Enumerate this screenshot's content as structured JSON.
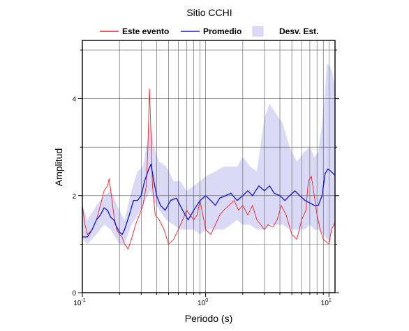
{
  "chart_data": {
    "type": "line",
    "title": "Sitio CCHI",
    "xlabel": "Periodo (s)",
    "ylabel": "Amplitud",
    "xscale": "log",
    "xlim": [
      0.1,
      11.2
    ],
    "ylim": [
      0,
      5.2
    ],
    "grid": true,
    "legend_position": "top",
    "x_ticks": [
      {
        "value": 0.1,
        "base": "10",
        "exp": "-1"
      },
      {
        "value": 1,
        "base": "10",
        "exp": "0"
      },
      {
        "value": 10,
        "base": "10",
        "exp": "1"
      }
    ],
    "y_ticks": [
      {
        "value": 0,
        "label": "0"
      },
      {
        "value": 2,
        "label": "2"
      },
      {
        "value": 4,
        "label": "4"
      }
    ],
    "band": {
      "name": "Desv. Est.",
      "color": "#dadaf6",
      "x": [
        0.1,
        0.11,
        0.13,
        0.15,
        0.17,
        0.2,
        0.22,
        0.25,
        0.28,
        0.31,
        0.34,
        0.355,
        0.38,
        0.42,
        0.48,
        0.55,
        0.62,
        0.7,
        0.8,
        0.9,
        1.0,
        1.2,
        1.4,
        1.6,
        1.8,
        2.0,
        2.3,
        2.6,
        3.0,
        3.3,
        3.7,
        4.2,
        4.8,
        5.5,
        6.3,
        7.0,
        7.6,
        8.2,
        9.0,
        9.6,
        10.0,
        10.5,
        11.2
      ],
      "upper": [
        1.8,
        1.5,
        1.8,
        2.0,
        2.1,
        1.7,
        1.5,
        2.1,
        2.5,
        2.6,
        3.2,
        3.5,
        3.0,
        2.7,
        2.6,
        2.3,
        2.3,
        2.1,
        2.2,
        2.3,
        2.4,
        2.5,
        2.6,
        2.6,
        2.6,
        2.8,
        2.6,
        2.5,
        3.6,
        3.9,
        3.7,
        3.5,
        3.0,
        2.7,
        2.9,
        3.0,
        2.8,
        2.9,
        3.7,
        4.7,
        4.7,
        4.6,
        4.3
      ],
      "lower": [
        1.1,
        1.0,
        1.2,
        1.4,
        1.3,
        1.0,
        1.0,
        1.4,
        1.6,
        1.8,
        2.0,
        2.1,
        1.9,
        1.7,
        1.5,
        1.4,
        1.3,
        1.3,
        1.3,
        1.2,
        1.3,
        1.3,
        1.3,
        1.4,
        1.5,
        1.4,
        1.4,
        1.3,
        1.3,
        1.4,
        1.4,
        1.4,
        1.3,
        1.3,
        1.3,
        1.4,
        1.3,
        1.3,
        1.2,
        1.1,
        1.1,
        1.3,
        1.4
      ]
    },
    "series": [
      {
        "name": "Este evento",
        "color": "#e8242c",
        "x": [
          0.1,
          0.105,
          0.11,
          0.12,
          0.13,
          0.14,
          0.15,
          0.16,
          0.165,
          0.17,
          0.18,
          0.19,
          0.2,
          0.21,
          0.22,
          0.235,
          0.25,
          0.27,
          0.29,
          0.31,
          0.33,
          0.34,
          0.35,
          0.36,
          0.37,
          0.39,
          0.42,
          0.46,
          0.5,
          0.55,
          0.6,
          0.65,
          0.7,
          0.75,
          0.8,
          0.85,
          0.9,
          0.95,
          1.0,
          1.1,
          1.2,
          1.3,
          1.4,
          1.55,
          1.7,
          1.85,
          2.0,
          2.2,
          2.4,
          2.6,
          2.8,
          3.0,
          3.2,
          3.5,
          3.8,
          4.1,
          4.5,
          5.0,
          5.5,
          6.0,
          6.5,
          6.8,
          7.2,
          7.6,
          8.0,
          8.5,
          9.0,
          9.5,
          10.0,
          10.5,
          11.2
        ],
        "values": [
          1.8,
          1.4,
          1.2,
          1.3,
          1.5,
          1.8,
          2.1,
          2.2,
          2.35,
          2.1,
          1.6,
          1.3,
          1.2,
          1.15,
          1.0,
          0.9,
          1.1,
          1.4,
          1.6,
          1.8,
          2.2,
          3.0,
          4.2,
          3.3,
          2.2,
          1.6,
          1.5,
          1.3,
          1.0,
          1.1,
          1.3,
          1.5,
          1.7,
          1.6,
          1.5,
          1.6,
          1.9,
          1.6,
          1.3,
          1.2,
          1.4,
          1.6,
          1.7,
          1.8,
          1.9,
          1.7,
          1.8,
          1.6,
          1.8,
          1.5,
          1.4,
          1.3,
          1.4,
          1.35,
          1.5,
          1.8,
          1.6,
          1.2,
          1.1,
          1.5,
          1.7,
          2.3,
          2.4,
          2.0,
          1.6,
          1.3,
          1.1,
          1.05,
          1.0,
          1.3,
          1.45
        ]
      },
      {
        "name": "Promedio",
        "color": "#1f1fd0",
        "x": [
          0.1,
          0.11,
          0.12,
          0.13,
          0.14,
          0.15,
          0.16,
          0.17,
          0.18,
          0.19,
          0.2,
          0.21,
          0.22,
          0.24,
          0.26,
          0.28,
          0.3,
          0.32,
          0.34,
          0.36,
          0.38,
          0.4,
          0.43,
          0.47,
          0.52,
          0.58,
          0.65,
          0.72,
          0.8,
          0.9,
          1.0,
          1.1,
          1.2,
          1.3,
          1.45,
          1.6,
          1.8,
          2.0,
          2.2,
          2.4,
          2.7,
          3.0,
          3.3,
          3.6,
          4.0,
          4.4,
          4.8,
          5.3,
          5.8,
          6.4,
          7.0,
          7.6,
          8.2,
          8.8,
          9.3,
          9.8,
          10.4,
          11.2
        ],
        "values": [
          1.15,
          1.15,
          1.3,
          1.5,
          1.6,
          1.75,
          1.7,
          1.55,
          1.5,
          1.35,
          1.25,
          1.2,
          1.3,
          1.6,
          1.9,
          1.9,
          2.0,
          2.3,
          2.5,
          2.65,
          2.3,
          2.0,
          1.8,
          1.7,
          1.9,
          1.95,
          1.7,
          1.5,
          1.7,
          1.9,
          2.0,
          1.9,
          1.8,
          1.95,
          2.0,
          2.05,
          1.9,
          2.0,
          2.1,
          2.0,
          2.2,
          2.1,
          2.2,
          2.05,
          2.0,
          1.9,
          2.0,
          2.1,
          2.0,
          1.9,
          1.85,
          1.8,
          1.8,
          2.0,
          2.45,
          2.55,
          2.5,
          2.42
        ]
      }
    ]
  }
}
